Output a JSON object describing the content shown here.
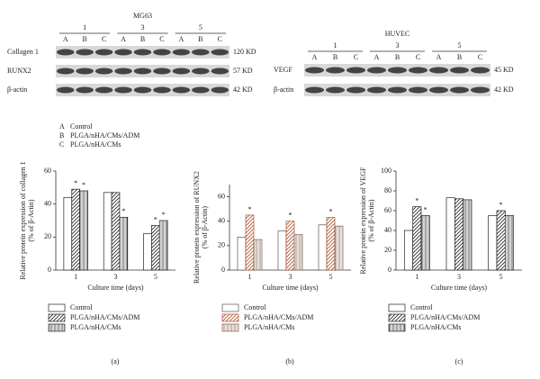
{
  "blots": [
    {
      "title": "MG63",
      "days": [
        "1",
        "3",
        "5"
      ],
      "lanes": [
        "A",
        "B",
        "C"
      ],
      "rows": [
        {
          "name": "Collagen 1",
          "size": "120 KD"
        },
        {
          "name": "RUNX2",
          "size": "57 KD"
        },
        {
          "name": "β-actin",
          "size": "42 KD"
        }
      ]
    },
    {
      "title": "HUVEC",
      "days": [
        "1",
        "3",
        "5"
      ],
      "lanes": [
        "A",
        "B",
        "C"
      ],
      "rows": [
        {
          "name": "VEGF",
          "size": "45 KD"
        },
        {
          "name": "β-actin",
          "size": "42 KD"
        }
      ]
    }
  ],
  "key": [
    {
      "letter": "A",
      "name": "Control"
    },
    {
      "letter": "B",
      "name": "PLGA/nHA/CMs/ADM"
    },
    {
      "letter": "C",
      "name": "PLGA/nHA/CMs"
    }
  ],
  "chart_data": [
    {
      "type": "bar",
      "panel": "(a)",
      "ylabel": "Relative protein expression of collagen 1",
      "ylabel2": "(% of β-Actin)",
      "xlabel": "Culture time (days)",
      "categories": [
        "1",
        "3",
        "5"
      ],
      "ylim": [
        0,
        60
      ],
      "yticks": [
        0,
        20,
        40,
        60
      ],
      "series": [
        {
          "name": "Control",
          "color": "#222222",
          "pattern": "none",
          "values": [
            44,
            47,
            22
          ],
          "stars": [
            null,
            null,
            null
          ]
        },
        {
          "name": "PLGA/nHA/CMs/ADM",
          "color": "#222222",
          "pattern": "diagonal",
          "values": [
            49,
            47,
            27
          ],
          "stars": [
            "*",
            null,
            "*"
          ]
        },
        {
          "name": "PLGA/nHA/CMs",
          "color": "#222222",
          "pattern": "vertical",
          "values": [
            48,
            32,
            30
          ],
          "stars": [
            "*",
            "*",
            "*"
          ]
        }
      ]
    },
    {
      "type": "bar",
      "panel": "(b)",
      "ylabel": "Relative protein expression of RUNX2",
      "ylabel2": "(% of β-Actin)",
      "xlabel": "Culture time (days)",
      "categories": [
        "1",
        "3",
        "5"
      ],
      "ylim": [
        0,
        70
      ],
      "yticks": [
        0,
        20,
        40,
        60
      ],
      "series": [
        {
          "name": "Control",
          "color": "#555555",
          "pattern": "none",
          "values": [
            27,
            32,
            37
          ],
          "stars": [
            null,
            null,
            null
          ]
        },
        {
          "name": "PLGA/nHA/CMs/ADM",
          "color": "#b05030",
          "pattern": "diagonal",
          "values": [
            45,
            40,
            43
          ],
          "stars": [
            "*",
            "*",
            "*"
          ]
        },
        {
          "name": "PLGA/nHA/CMs",
          "color": "#806050",
          "pattern": "vertical",
          "values": [
            25,
            29,
            36
          ],
          "stars": [
            null,
            null,
            null
          ]
        }
      ]
    },
    {
      "type": "bar",
      "panel": "(c)",
      "ylabel": "Relative protein expression of VEGF",
      "ylabel2": "(% of β-Actin)",
      "xlabel": "Culture time (days)",
      "categories": [
        "1",
        "3",
        "5"
      ],
      "ylim": [
        0,
        100
      ],
      "yticks": [
        0,
        20,
        40,
        60,
        80,
        100
      ],
      "series": [
        {
          "name": "Control",
          "color": "#222222",
          "pattern": "none",
          "values": [
            40,
            73,
            55
          ],
          "stars": [
            null,
            null,
            null
          ]
        },
        {
          "name": "PLGA/nHA/CMs/ADM",
          "color": "#222222",
          "pattern": "diagonal",
          "values": [
            64,
            72,
            60
          ],
          "stars": [
            "*",
            null,
            "*"
          ]
        },
        {
          "name": "PLGA/nHA/CMs",
          "color": "#222222",
          "pattern": "vertical",
          "values": [
            55,
            71,
            55
          ],
          "stars": [
            "*",
            null,
            null
          ]
        }
      ]
    }
  ]
}
